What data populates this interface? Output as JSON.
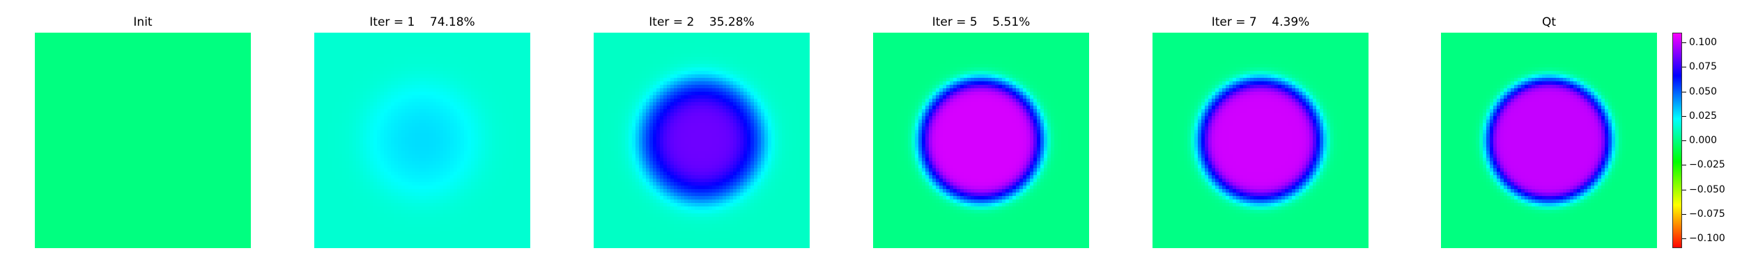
{
  "chart_data": {
    "type": "heatmap",
    "colormap": "gist_rainbow",
    "colorbar": {
      "vmin": -0.11,
      "vmax": 0.11,
      "ticks": [
        0.1,
        0.075,
        0.05,
        0.025,
        0.0,
        -0.025,
        -0.05,
        -0.075,
        -0.1
      ],
      "tick_labels": [
        "0.100",
        "0.075",
        "0.050",
        "0.025",
        "0.000",
        "−0.025",
        "−0.050",
        "−0.075",
        "−0.100"
      ]
    },
    "panels": [
      {
        "title": "Init",
        "iter": null,
        "error_pct": null,
        "center_value": 0.0,
        "background_value": 0.0,
        "ring_value": 0.0,
        "radius": 0.0,
        "edge": 0.0
      },
      {
        "title": "Iter = 1    74.18%",
        "iter": 1,
        "error_pct": 74.18,
        "center_value": 0.028,
        "background_value": 0.014,
        "ring_value": 0.024,
        "radius": 0.42,
        "edge": 0.18
      },
      {
        "title": "Iter = 2    35.28%",
        "iter": 2,
        "error_pct": 35.28,
        "center_value": 0.085,
        "background_value": 0.012,
        "ring_value": 0.062,
        "radius": 0.5,
        "edge": 0.12
      },
      {
        "title": "Iter = 5    5.51%",
        "iter": 5,
        "error_pct": 5.51,
        "center_value": 0.103,
        "background_value": 0.001,
        "ring_value": 0.058,
        "radius": 0.56,
        "edge": 0.06
      },
      {
        "title": "Iter = 7    4.39%",
        "iter": 7,
        "error_pct": 4.39,
        "center_value": 0.102,
        "background_value": 0.001,
        "ring_value": 0.058,
        "radius": 0.56,
        "edge": 0.06
      },
      {
        "title": "Qt",
        "iter": null,
        "error_pct": null,
        "center_value": 0.1,
        "background_value": 0.0,
        "ring_value": 0.055,
        "radius": 0.57,
        "edge": 0.05
      }
    ]
  }
}
